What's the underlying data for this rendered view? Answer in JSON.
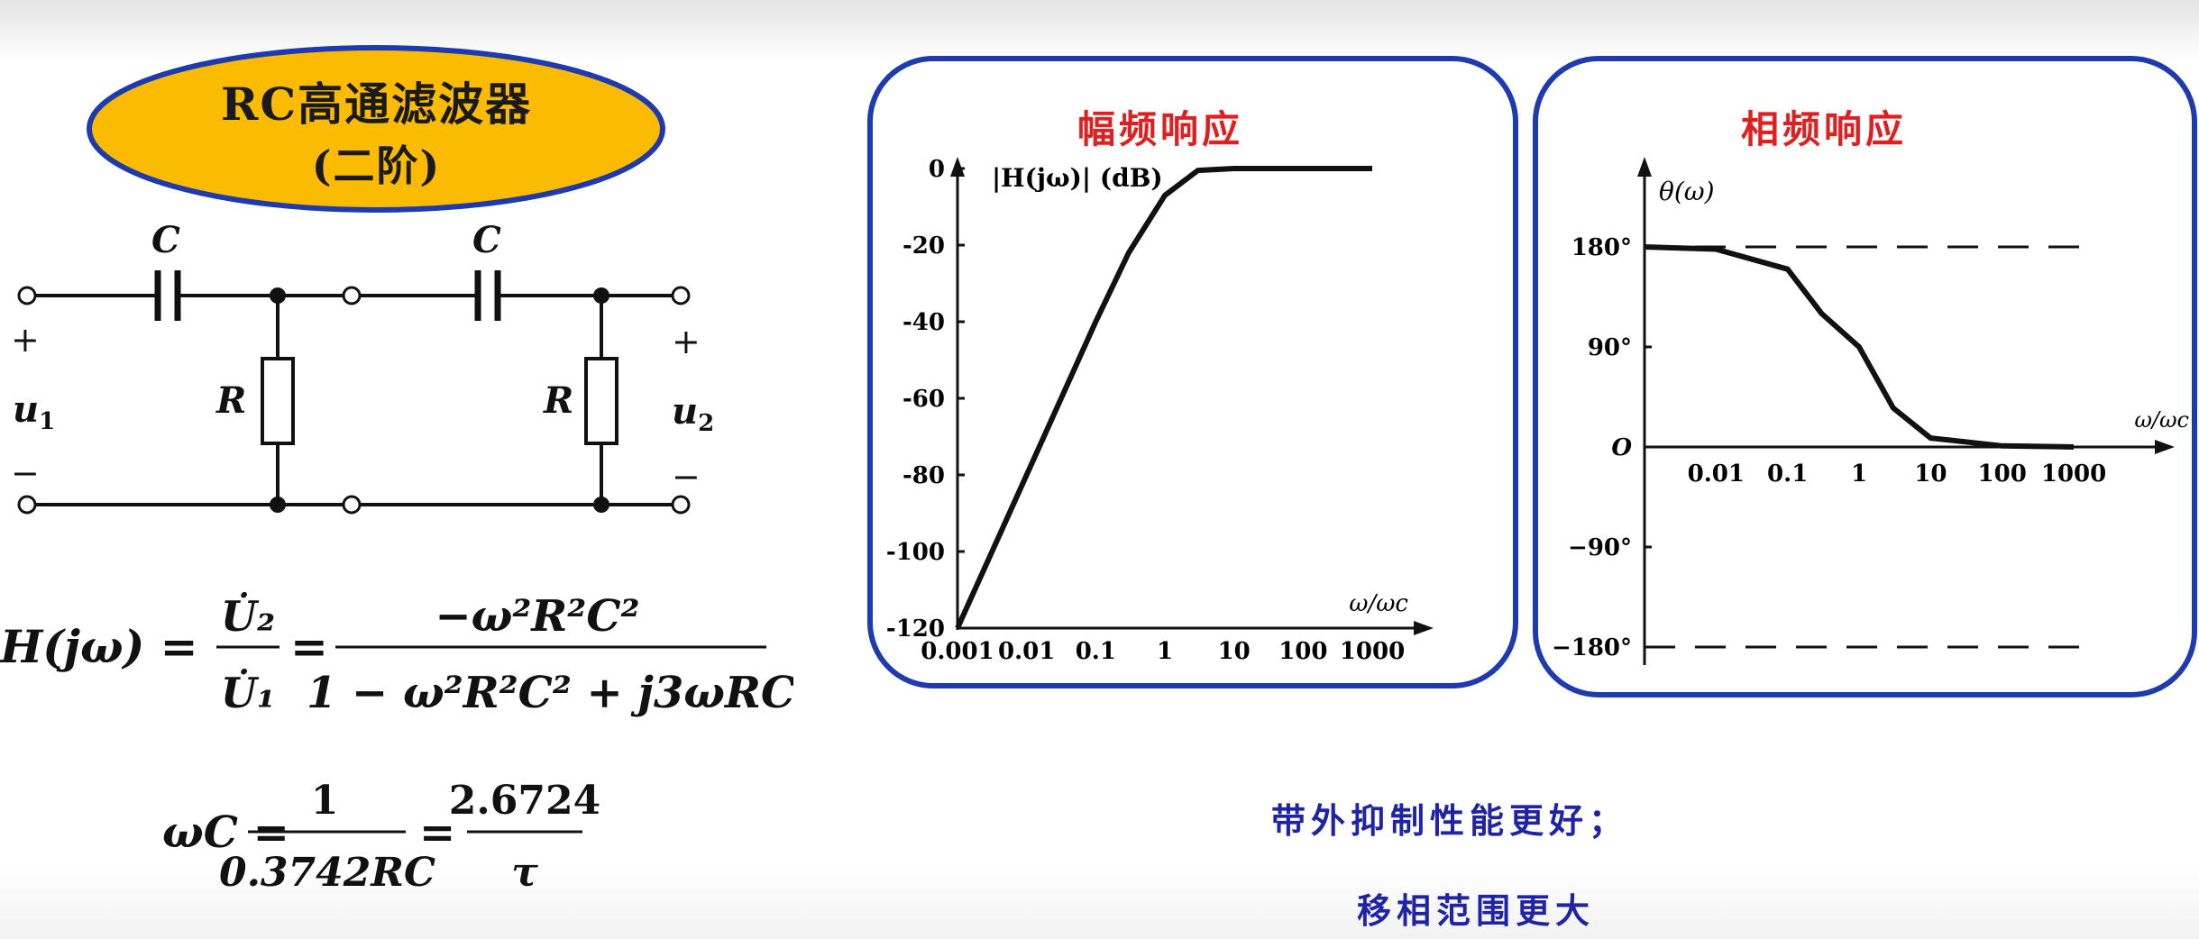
{
  "title": {
    "line1": "RC高通滤波器",
    "line2": "(二阶)"
  },
  "colors": {
    "title_fill": "#fbbb00",
    "title_border": "#1e3ab0",
    "panel_border": "#1e3ab0",
    "chart_title": "#e02020",
    "note_text": "#1f23a6"
  },
  "circuit": {
    "cap1_label": "C",
    "cap2_label": "C",
    "res1_label": "R",
    "res2_label": "R",
    "in_plus": "+",
    "in_minus": "−",
    "in_var": "u",
    "in_var_sub": "1",
    "out_plus": "+",
    "out_minus": "−",
    "out_var": "u",
    "out_var_sub": "2"
  },
  "formula_transfer": {
    "lhs": "H(jω) =",
    "frac1_num": "U̇₂",
    "frac1_den": "U̇₁",
    "eq": "=",
    "frac2_num": "−ω²R²C²",
    "frac2_den": "1 − ω²R²C² + j3ωRC"
  },
  "formula_cutoff": {
    "lhs": "ωC =",
    "frac1_num": "1",
    "frac1_den": "0.3742RC",
    "eq": "=",
    "frac2_num": "2.6724",
    "frac2_den": "τ"
  },
  "chart_data": [
    {
      "type": "line",
      "title": "幅频响应",
      "ylabel": "|H(jω)| (dB)",
      "xlabel": "ω/ωc",
      "x_scale": "log",
      "x": [
        0.001,
        0.01,
        0.1,
        0.3,
        1,
        3,
        10,
        100,
        1000
      ],
      "series": [
        {
          "values": [
            -120,
            -80,
            -40,
            -22,
            -7,
            -0.5,
            0,
            0,
            0
          ]
        }
      ],
      "xticks": [
        "0.001",
        "0.01",
        "0.1",
        "1",
        "10",
        "100",
        "1000"
      ],
      "yticks": [
        "0",
        "-20",
        "-40",
        "-60",
        "-80",
        "-100",
        "-120"
      ],
      "ylim": [
        -120,
        0
      ]
    },
    {
      "type": "line",
      "title": "相频响应",
      "ylabel": "θ(ω)",
      "xlabel": "ω/ωc",
      "x_scale": "log",
      "x": [
        0.001,
        0.01,
        0.1,
        0.3,
        1,
        3,
        10,
        100,
        1000
      ],
      "series": [
        {
          "values": [
            180,
            178,
            160,
            120,
            90,
            35,
            8,
            1,
            0
          ]
        }
      ],
      "xticks": [
        "0.01",
        "0.1",
        "1",
        "10",
        "100",
        "1000"
      ],
      "yticks": [
        "180°",
        "90°",
        "O",
        "−90°",
        "−180°"
      ],
      "reference_lines": [
        180,
        -180
      ],
      "ylim": [
        -180,
        180
      ]
    }
  ],
  "notes": {
    "line1": "带外抑制性能更好；",
    "line2": "移相范围更大"
  }
}
